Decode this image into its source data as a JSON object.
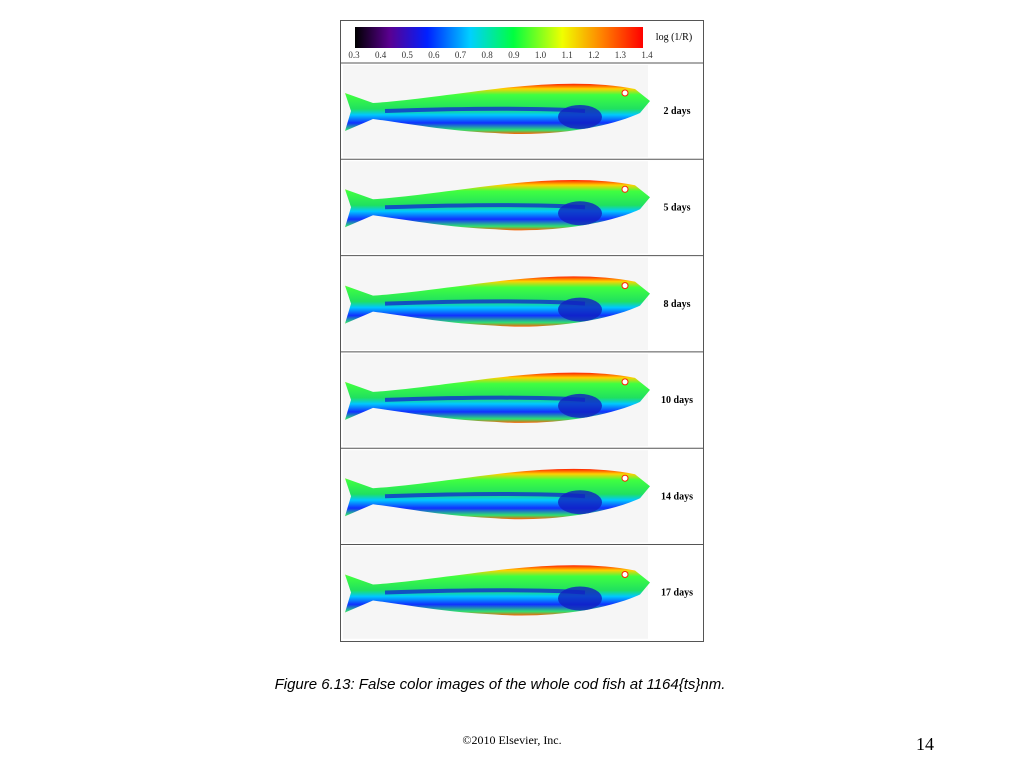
{
  "colorbar": {
    "label": "log (1/R)",
    "ticks": [
      "0.3",
      "0.4",
      "0.5",
      "0.6",
      "0.7",
      "0.8",
      "0.9",
      "1.0",
      "1.1",
      "1.2",
      "1.3",
      "1.4"
    ]
  },
  "panels": [
    {
      "label": "2 days"
    },
    {
      "label": "5 days"
    },
    {
      "label": "8 days"
    },
    {
      "label": "10 days"
    },
    {
      "label": "14 days"
    },
    {
      "label": "17 days"
    }
  ],
  "caption": "Figure 6.13: False color images of the whole cod fish at 1164{ts}nm.",
  "copyright": "©2010 Elsevier, Inc.",
  "page_number": "14"
}
